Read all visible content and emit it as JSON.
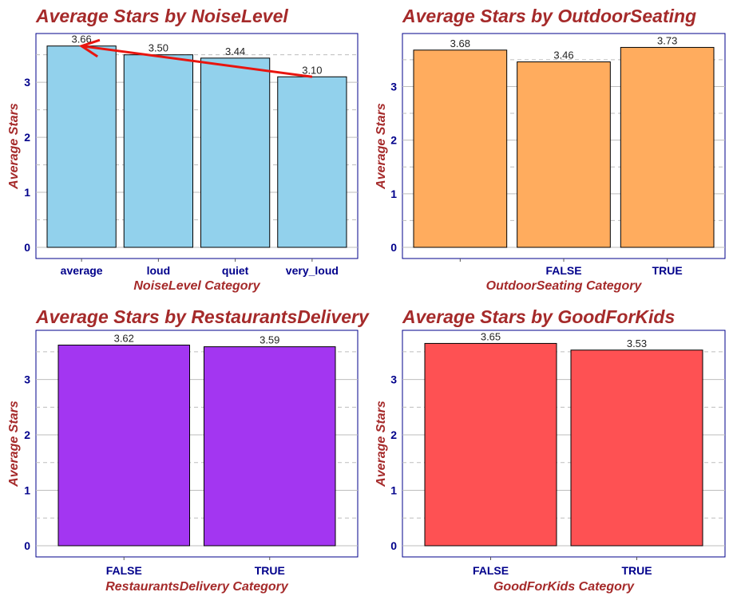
{
  "chart_data": [
    {
      "type": "bar",
      "title": "Average Stars by NoiseLevel",
      "xlabel": "NoiseLevel Category",
      "ylabel": "Average Stars",
      "categories": [
        "average",
        "loud",
        "quiet",
        "very_loud"
      ],
      "values": [
        3.66,
        3.5,
        3.44,
        3.1
      ],
      "value_labels": [
        "3.66",
        "3.50",
        "3.44",
        "3.10"
      ],
      "y_ticks": [
        "0",
        "1",
        "2",
        "3"
      ],
      "ylim": [
        0,
        3.8
      ],
      "color": "#92d1ec",
      "annotation": {
        "type": "arrow",
        "from": "very_loud",
        "to": "average",
        "color": "#e8150f"
      }
    },
    {
      "type": "bar",
      "title": "Average Stars by OutdoorSeating",
      "xlabel": "OutdoorSeating Category",
      "ylabel": "Average Stars",
      "categories": [
        "",
        "FALSE",
        "TRUE"
      ],
      "values": [
        3.68,
        3.46,
        3.73
      ],
      "value_labels": [
        "3.68",
        "3.46",
        "3.73"
      ],
      "y_ticks": [
        "0",
        "1",
        "2",
        "3"
      ],
      "ylim": [
        0,
        3.9
      ],
      "color": "#ffac5e"
    },
    {
      "type": "bar",
      "title": "Average Stars by RestaurantsDelivery",
      "xlabel": "RestaurantsDelivery Category",
      "ylabel": "Average Stars",
      "categories": [
        "FALSE",
        "TRUE"
      ],
      "values": [
        3.62,
        3.59
      ],
      "value_labels": [
        "3.62",
        "3.59"
      ],
      "y_ticks": [
        "0",
        "1",
        "2",
        "3"
      ],
      "ylim": [
        0,
        3.8
      ],
      "color": "#a336f1"
    },
    {
      "type": "bar",
      "title": "Average Stars by GoodForKids",
      "xlabel": "GoodForKids Category",
      "ylabel": "Average Stars",
      "categories": [
        "FALSE",
        "TRUE"
      ],
      "values": [
        3.65,
        3.53
      ],
      "value_labels": [
        "3.65",
        "3.53"
      ],
      "y_ticks": [
        "0",
        "1",
        "2",
        "3"
      ],
      "ylim": [
        0,
        3.8
      ],
      "color": "#fe5153"
    }
  ]
}
